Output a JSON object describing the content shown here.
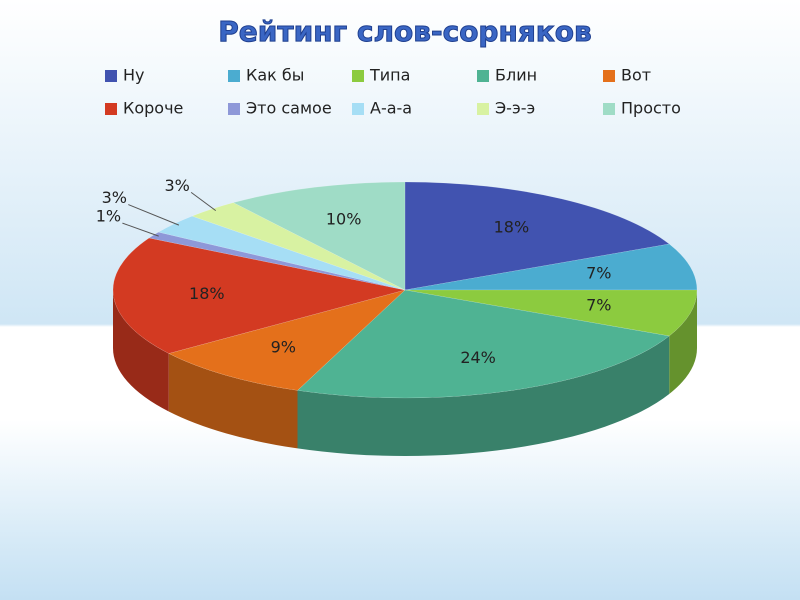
{
  "chart_data": {
    "type": "pie",
    "title": "Рейтинг слов-сорняков",
    "categories": [
      "Ну",
      "Как бы",
      "Типа",
      "Блин",
      "Вот",
      "Короче",
      "Это самое",
      "А-а-а",
      "Э-э-э",
      "Просто"
    ],
    "values": [
      18,
      7,
      7,
      24,
      9,
      18,
      1,
      3,
      3,
      10
    ],
    "value_labels": [
      "18%",
      "7%",
      "7%",
      "24%",
      "9%",
      "18%",
      "1%",
      "3%",
      "3%",
      "10%"
    ],
    "colors": [
      "#4153b0",
      "#4bacd0",
      "#8ccb3f",
      "#4fb393",
      "#e4701b",
      "#d33a22",
      "#8e98d8",
      "#a6def5",
      "#d8f2a2",
      "#9fdcc6"
    ]
  }
}
